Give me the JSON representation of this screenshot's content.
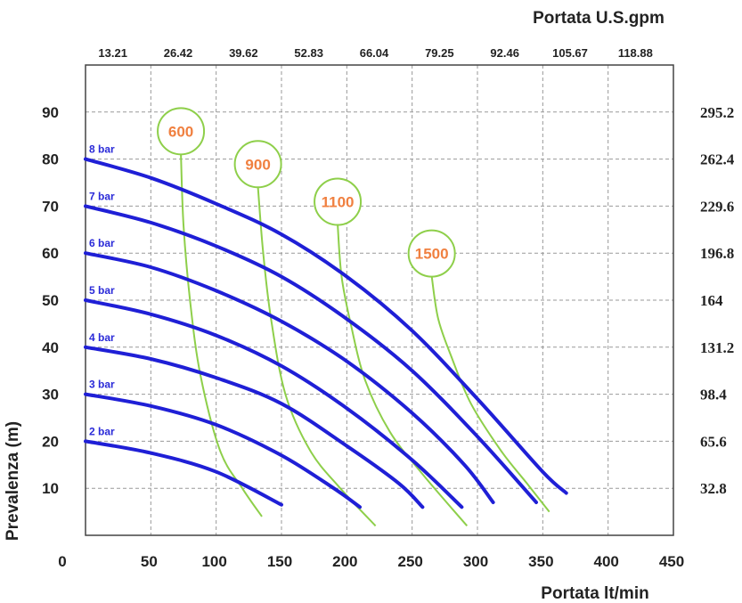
{
  "chart_data": {
    "type": "line",
    "top_axis_title": "Portata U.S.gpm",
    "top_ticks": [
      "13.21",
      "26.42",
      "39.62",
      "52.83",
      "66.04",
      "79.25",
      "92.46",
      "105.67",
      "118.88"
    ],
    "xlabel": "Portata  lt/min",
    "x_ticks": [
      "0",
      "50",
      "100",
      "150",
      "200",
      "250",
      "300",
      "350",
      "400",
      "450"
    ],
    "xlim": [
      0,
      450
    ],
    "ylabel": "Prevalenza (m)",
    "y_ticks": [
      "10",
      "20",
      "30",
      "40",
      "50",
      "60",
      "70",
      "80",
      "90"
    ],
    "ylim": [
      0,
      100
    ],
    "right_ticks": [
      "32.8",
      "65.6",
      "98.4",
      "131.2",
      "164",
      "196.8",
      "229.6",
      "262.4",
      "295.2"
    ],
    "grid": true,
    "series": [
      {
        "name": "2 bar",
        "points": [
          [
            0,
            20
          ],
          [
            50,
            17.5
          ],
          [
            100,
            13.5
          ],
          [
            150,
            6.5
          ]
        ]
      },
      {
        "name": "3 bar",
        "points": [
          [
            0,
            30
          ],
          [
            50,
            27.5
          ],
          [
            100,
            23.5
          ],
          [
            150,
            17
          ],
          [
            190,
            10
          ],
          [
            210,
            6
          ]
        ]
      },
      {
        "name": "4 bar",
        "points": [
          [
            0,
            40
          ],
          [
            50,
            37.5
          ],
          [
            100,
            33.5
          ],
          [
            150,
            28
          ],
          [
            200,
            19
          ],
          [
            240,
            11
          ],
          [
            258,
            6
          ]
        ]
      },
      {
        "name": "5 bar",
        "points": [
          [
            0,
            50
          ],
          [
            50,
            47
          ],
          [
            100,
            42.5
          ],
          [
            150,
            36
          ],
          [
            200,
            27
          ],
          [
            250,
            16
          ],
          [
            288,
            6
          ]
        ]
      },
      {
        "name": "6 bar",
        "points": [
          [
            0,
            60
          ],
          [
            50,
            57
          ],
          [
            100,
            52
          ],
          [
            150,
            45.5
          ],
          [
            200,
            37
          ],
          [
            250,
            26
          ],
          [
            290,
            15
          ],
          [
            312,
            7
          ]
        ]
      },
      {
        "name": "7 bar",
        "points": [
          [
            0,
            70
          ],
          [
            50,
            66.5
          ],
          [
            100,
            61.5
          ],
          [
            150,
            55
          ],
          [
            200,
            46
          ],
          [
            250,
            35
          ],
          [
            300,
            21
          ],
          [
            345,
            7
          ]
        ]
      },
      {
        "name": "8 bar",
        "points": [
          [
            0,
            80
          ],
          [
            50,
            76
          ],
          [
            100,
            70.5
          ],
          [
            150,
            64
          ],
          [
            200,
            55
          ],
          [
            250,
            43.5
          ],
          [
            300,
            29
          ],
          [
            350,
            13.5
          ],
          [
            368,
            9
          ]
        ]
      }
    ],
    "speed_curves": [
      {
        "label": "600",
        "points": [
          [
            73,
            81
          ],
          [
            75,
            66
          ],
          [
            80,
            50
          ],
          [
            88,
            34
          ],
          [
            103,
            18
          ],
          [
            120,
            10
          ],
          [
            135,
            4
          ]
        ]
      },
      {
        "label": "900",
        "points": [
          [
            132,
            74
          ],
          [
            136,
            60
          ],
          [
            142,
            46
          ],
          [
            153,
            30
          ],
          [
            172,
            18
          ],
          [
            195,
            10
          ],
          [
            222,
            2
          ]
        ]
      },
      {
        "label": "1100",
        "points": [
          [
            193,
            66
          ],
          [
            196,
            55
          ],
          [
            203,
            45
          ],
          [
            214,
            33
          ],
          [
            233,
            22
          ],
          [
            258,
            13
          ],
          [
            292,
            2
          ]
        ]
      },
      {
        "label": "1500",
        "points": [
          [
            265,
            55
          ],
          [
            270,
            46
          ],
          [
            280,
            38
          ],
          [
            295,
            28
          ],
          [
            318,
            18
          ],
          [
            338,
            11
          ],
          [
            355,
            5
          ]
        ]
      }
    ],
    "colors": {
      "series": "#1f1fd6",
      "series_label": "#2a2ad8",
      "speed_curve": "#8ecf4a",
      "speed_label": "#f08040",
      "grid": "#999999",
      "border": "#444444"
    }
  }
}
